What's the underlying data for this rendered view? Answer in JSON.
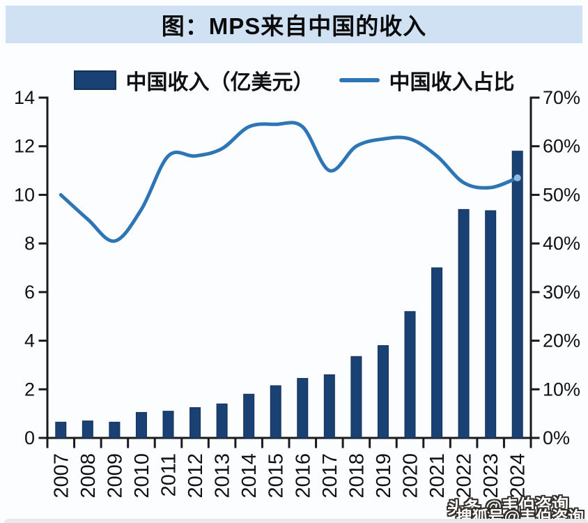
{
  "page": {
    "title": "图：MPS来自中国的收入"
  },
  "legend": {
    "bar_label": "中国收入（亿美元）",
    "line_label": "中国收入占比"
  },
  "watermark": {
    "line1": "头条 @韦伯咨询",
    "line2": "搜狐号@韦伯咨询"
  },
  "colors": {
    "title_band_bg": "#cfe1f2",
    "bar_fill": "#1a4173",
    "bar_border": "#123156",
    "line_stroke": "#2e75b6",
    "line_end_dot": "#8fb8dc",
    "axis": "#1a1a1a",
    "text": "#111111"
  },
  "chart_data": {
    "type": "bar",
    "subtype": "combo-bar-line-dual-axis",
    "title": "图：MPS来自中国的收入",
    "categories": [
      "2007",
      "2008",
      "2009",
      "2010",
      "2011",
      "2012",
      "2013",
      "2014",
      "2015",
      "2016",
      "2017",
      "2018",
      "2019",
      "2020",
      "2021",
      "2022",
      "2023",
      "2024"
    ],
    "series": [
      {
        "name": "中国收入（亿美元）",
        "type": "bar",
        "axis": "left",
        "values": [
          0.65,
          0.7,
          0.65,
          1.05,
          1.1,
          1.25,
          1.4,
          1.8,
          2.15,
          2.45,
          2.6,
          3.35,
          3.8,
          5.2,
          7.0,
          9.4,
          9.35,
          11.8
        ]
      },
      {
        "name": "中国收入占比",
        "type": "line",
        "axis": "right",
        "unit": "%",
        "values": [
          50,
          45,
          40.5,
          47,
          58,
          58,
          59.5,
          64,
          64.5,
          64,
          55,
          60,
          61.5,
          61.5,
          58,
          52.5,
          51.5,
          53.5
        ]
      }
    ],
    "left_axis": {
      "min": 0,
      "max": 14,
      "tick_step": 2,
      "tick_labels": [
        "0",
        "2",
        "4",
        "6",
        "8",
        "10",
        "12",
        "14"
      ]
    },
    "right_axis": {
      "min": 0,
      "max": 70,
      "tick_step": 10,
      "suffix": "%",
      "tick_labels": [
        "0%",
        "10%",
        "20%",
        "30%",
        "40%",
        "50%",
        "60%",
        "70%"
      ]
    },
    "xlabel": "",
    "ylabel": "",
    "grid": false,
    "legend_position": "top",
    "line_smoothing": true
  }
}
